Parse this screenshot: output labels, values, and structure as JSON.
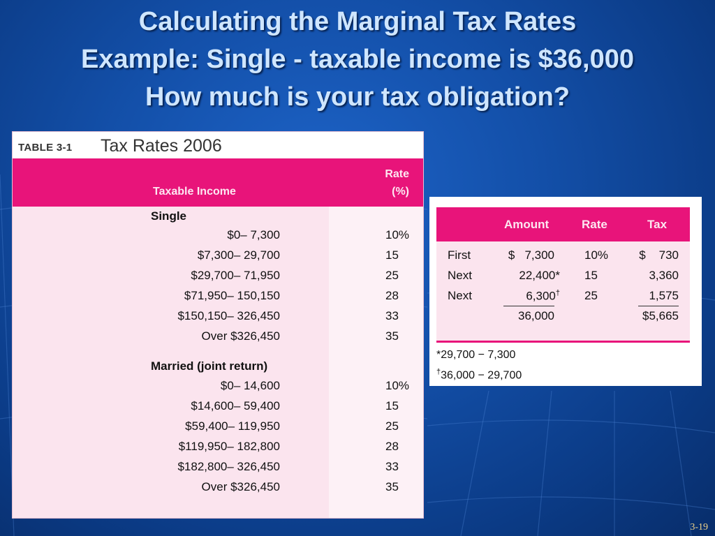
{
  "slide": {
    "title_lines": [
      "Calculating the Marginal Tax Rates",
      "Example: Single - taxable income is $36,000",
      "How much is your tax obligation?"
    ],
    "slide_number": "3-19"
  },
  "table31": {
    "label": "TABLE 3-1",
    "title": "Tax Rates 2006",
    "col_income": "Taxable Income",
    "col_rate_line1": "Rate",
    "col_rate_line2": "(%)",
    "sections": [
      {
        "heading": "Single",
        "rows": [
          {
            "range": "$0–     7,300",
            "rate": "10%"
          },
          {
            "range": "$7,300–   29,700",
            "rate": "15"
          },
          {
            "range": "$29,700–   71,950",
            "rate": "25"
          },
          {
            "range": "$71,950– 150,150",
            "rate": "28"
          },
          {
            "range": "$150,150– 326,450",
            "rate": "33"
          },
          {
            "range": "Over $326,450",
            "rate": "35"
          }
        ]
      },
      {
        "heading": "Married (joint return)",
        "rows": [
          {
            "range": "$0–   14,600",
            "rate": "10%"
          },
          {
            "range": "$14,600–   59,400",
            "rate": "15"
          },
          {
            "range": "$59,400– 119,950",
            "rate": "25"
          },
          {
            "range": "$119,950– 182,800",
            "rate": "28"
          },
          {
            "range": "$182,800– 326,450",
            "rate": "33"
          },
          {
            "range": "Over $326,450",
            "rate": "35"
          }
        ]
      }
    ]
  },
  "calc": {
    "headers": {
      "amount": "Amount",
      "rate": "Rate",
      "tax": "Tax"
    },
    "rows": [
      {
        "label": "First",
        "amount": "$   7,300",
        "rate": "10%",
        "tax": "$    730"
      },
      {
        "label": "Next",
        "amount": "22,400*",
        "rate": "15",
        "tax": "3,360"
      },
      {
        "label": "Next",
        "amount": "6,300",
        "amount_mark": "†",
        "rate": "25",
        "tax": "1,575"
      }
    ],
    "total_amount": "36,000",
    "total_tax": "$5,665",
    "footnote1": "*29,700 − 7,300",
    "footnote2_mark": "†",
    "footnote2": "36,000 − 29,700"
  }
}
